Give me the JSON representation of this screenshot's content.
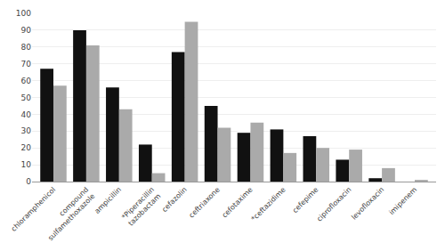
{
  "chart_data": {
    "type": "bar",
    "categories": [
      "chloramphenicol",
      "compound\nsulfamethoxazole",
      "ampicillin",
      "*Piperacillin\ntazobactam",
      "cefazolin",
      "ceftriaxone",
      "cefotaxime",
      "*ceftazidime",
      "cefepime",
      "ciprofloxacin",
      "levofloxacin",
      "imipenem"
    ],
    "series": [
      {
        "color": "#111111",
        "values": [
          67,
          90,
          56,
          22,
          77,
          45,
          29,
          31,
          27,
          13,
          2,
          0
        ]
      },
      {
        "color": "#aaaaaa",
        "values": [
          57,
          81,
          43,
          5,
          95,
          32,
          35,
          17,
          20,
          19,
          8,
          1
        ]
      }
    ],
    "ylim": [
      0,
      100
    ],
    "yticks": [
      0,
      10,
      20,
      30,
      40,
      50,
      60,
      70,
      80,
      90,
      100
    ],
    "grid": true
  }
}
